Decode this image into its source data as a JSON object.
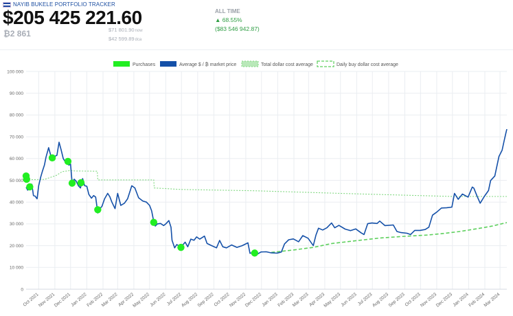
{
  "header": {
    "brand": "NAYIB BUKELE PORTFOLIO TRACKER",
    "total_value": "$205 425 221.60",
    "btc_amount": "₿2 861",
    "sub_line_1": "$71 801.90",
    "sub_line_1_unit": "now",
    "sub_line_2": "$42 599.89",
    "sub_line_2_unit": "dca",
    "alltime_label": "ALL TIME",
    "alltime_pct": "▲ 68.55%",
    "alltime_usd": "($83 546 942.87)"
  },
  "colors": {
    "price": "#1450a8",
    "purchase": "#22ee22",
    "total_dca": "#7fd77f",
    "daily_dca": "#5ccf5c",
    "grid": "#eaedf1"
  },
  "chart_data": {
    "type": "line",
    "title": "",
    "xlabel": "",
    "ylabel": "",
    "ylim": [
      0,
      100000
    ],
    "y_ticks": [
      "0",
      "10 000",
      "20 000",
      "30 000",
      "40 000",
      "50 000",
      "60 000",
      "70 000",
      "80 000",
      "90 000",
      "100 000"
    ],
    "x_ticks": [
      "Oct 2021",
      "Nov 2021",
      "Dec 2021",
      "Jan 2022",
      "Feb 2022",
      "Mar 2022",
      "Apr 2022",
      "May 2022",
      "Jun 2022",
      "Jul 2022",
      "Aug 2022",
      "Sep 2022",
      "Oct 2022",
      "Nov 2022",
      "Dec 2022",
      "Jan 2023",
      "Feb 2023",
      "Mar 2023",
      "Apr 2023",
      "May 2023",
      "Jun 2023",
      "Jul 2023",
      "Aug 2023",
      "Sep 2023",
      "Oct 2023",
      "Nov 2023",
      "Dec 2023",
      "Jan 2024",
      "Feb 2024",
      "Mar 2024"
    ],
    "x_start": "2021-09-07",
    "x_end": "2024-03-14",
    "legend": [
      "Purchases",
      "Average $ / ₿ market price",
      "Total dollar cost average",
      "Daily buy dollar cost average"
    ],
    "legend_position": "top",
    "grid": true,
    "series": [
      {
        "name": "Average $ / ₿ market price",
        "style": "solid",
        "points": [
          [
            "2021-09-07",
            46800
          ],
          [
            "2021-09-10",
            45500
          ],
          [
            "2021-09-14",
            47000
          ],
          [
            "2021-09-18",
            48200
          ],
          [
            "2021-09-21",
            43000
          ],
          [
            "2021-09-24",
            42800
          ],
          [
            "2021-09-28",
            41500
          ],
          [
            "2021-10-01",
            47500
          ],
          [
            "2021-10-05",
            51500
          ],
          [
            "2021-10-08",
            54000
          ],
          [
            "2021-10-12",
            57000
          ],
          [
            "2021-10-15",
            60500
          ],
          [
            "2021-10-20",
            65000
          ],
          [
            "2021-10-24",
            61500
          ],
          [
            "2021-10-28",
            60500
          ],
          [
            "2021-11-01",
            61000
          ],
          [
            "2021-11-05",
            61500
          ],
          [
            "2021-11-09",
            67500
          ],
          [
            "2021-11-13",
            64000
          ],
          [
            "2021-11-17",
            60000
          ],
          [
            "2021-11-21",
            58500
          ],
          [
            "2021-11-25",
            57500
          ],
          [
            "2021-11-28",
            57000
          ],
          [
            "2021-12-01",
            57500
          ],
          [
            "2021-12-04",
            49000
          ],
          [
            "2021-12-08",
            50500
          ],
          [
            "2021-12-12",
            49500
          ],
          [
            "2021-12-16",
            47500
          ],
          [
            "2021-12-20",
            46500
          ],
          [
            "2021-12-24",
            50800
          ],
          [
            "2021-12-28",
            47500
          ],
          [
            "2022-01-01",
            47300
          ],
          [
            "2022-01-05",
            43500
          ],
          [
            "2022-01-10",
            41800
          ],
          [
            "2022-01-14",
            43000
          ],
          [
            "2022-01-18",
            42300
          ],
          [
            "2022-01-22",
            35000
          ],
          [
            "2022-01-26",
            37000
          ],
          [
            "2022-01-30",
            38000
          ],
          [
            "2022-02-04",
            41500
          ],
          [
            "2022-02-10",
            44000
          ],
          [
            "2022-02-14",
            42500
          ],
          [
            "2022-02-18",
            40000
          ],
          [
            "2022-02-24",
            37000
          ],
          [
            "2022-03-01",
            44000
          ],
          [
            "2022-03-07",
            38500
          ],
          [
            "2022-03-14",
            39500
          ],
          [
            "2022-03-20",
            41500
          ],
          [
            "2022-03-28",
            47500
          ],
          [
            "2022-04-03",
            46500
          ],
          [
            "2022-04-10",
            42000
          ],
          [
            "2022-04-18",
            40500
          ],
          [
            "2022-04-25",
            40000
          ],
          [
            "2022-05-01",
            38500
          ],
          [
            "2022-05-05",
            36000
          ],
          [
            "2022-05-09",
            31000
          ],
          [
            "2022-05-12",
            29000
          ],
          [
            "2022-05-16",
            30000
          ],
          [
            "2022-05-22",
            30200
          ],
          [
            "2022-05-28",
            29200
          ],
          [
            "2022-06-01",
            30000
          ],
          [
            "2022-06-07",
            31500
          ],
          [
            "2022-06-11",
            28500
          ],
          [
            "2022-06-13",
            22500
          ],
          [
            "2022-06-18",
            19000
          ],
          [
            "2022-06-22",
            20500
          ],
          [
            "2022-06-30",
            19300
          ],
          [
            "2022-07-08",
            21600
          ],
          [
            "2022-07-13",
            19500
          ],
          [
            "2022-07-19",
            23000
          ],
          [
            "2022-07-25",
            22500
          ],
          [
            "2022-07-30",
            24000
          ],
          [
            "2022-08-05",
            23000
          ],
          [
            "2022-08-14",
            24400
          ],
          [
            "2022-08-19",
            21000
          ],
          [
            "2022-08-26",
            20200
          ],
          [
            "2022-09-06",
            19000
          ],
          [
            "2022-09-12",
            22400
          ],
          [
            "2022-09-18",
            19500
          ],
          [
            "2022-09-25",
            19000
          ],
          [
            "2022-10-05",
            20300
          ],
          [
            "2022-10-15",
            19200
          ],
          [
            "2022-10-25",
            20000
          ],
          [
            "2022-11-05",
            21300
          ],
          [
            "2022-11-09",
            16500
          ],
          [
            "2022-11-15",
            16800
          ],
          [
            "2022-11-21",
            15800
          ],
          [
            "2022-11-30",
            17100
          ],
          [
            "2022-12-10",
            17200
          ],
          [
            "2022-12-20",
            16700
          ],
          [
            "2022-12-31",
            16550
          ],
          [
            "2023-01-08",
            17100
          ],
          [
            "2023-01-14",
            20800
          ],
          [
            "2023-01-22",
            22700
          ],
          [
            "2023-01-31",
            23100
          ],
          [
            "2023-02-10",
            21800
          ],
          [
            "2023-02-18",
            24600
          ],
          [
            "2023-02-28",
            23400
          ],
          [
            "2023-03-10",
            20000
          ],
          [
            "2023-03-15",
            24800
          ],
          [
            "2023-03-20",
            28000
          ],
          [
            "2023-03-28",
            27200
          ],
          [
            "2023-04-05",
            28200
          ],
          [
            "2023-04-14",
            30400
          ],
          [
            "2023-04-20",
            28200
          ],
          [
            "2023-04-28",
            29300
          ],
          [
            "2023-05-10",
            27600
          ],
          [
            "2023-05-20",
            26900
          ],
          [
            "2023-05-30",
            27700
          ],
          [
            "2023-06-10",
            25800
          ],
          [
            "2023-06-15",
            25100
          ],
          [
            "2023-06-22",
            30100
          ],
          [
            "2023-06-30",
            30400
          ],
          [
            "2023-07-10",
            30200
          ],
          [
            "2023-07-15",
            31300
          ],
          [
            "2023-07-25",
            29200
          ],
          [
            "2023-08-10",
            29500
          ],
          [
            "2023-08-17",
            26500
          ],
          [
            "2023-08-25",
            26000
          ],
          [
            "2023-09-05",
            25700
          ],
          [
            "2023-09-12",
            25100
          ],
          [
            "2023-09-20",
            27000
          ],
          [
            "2023-09-30",
            27000
          ],
          [
            "2023-10-10",
            27400
          ],
          [
            "2023-10-17",
            28500
          ],
          [
            "2023-10-24",
            34000
          ],
          [
            "2023-11-01",
            35400
          ],
          [
            "2023-11-10",
            37300
          ],
          [
            "2023-11-20",
            37400
          ],
          [
            "2023-11-30",
            37700
          ],
          [
            "2023-12-05",
            44000
          ],
          [
            "2023-12-12",
            41300
          ],
          [
            "2023-12-20",
            43700
          ],
          [
            "2023-12-31",
            42300
          ],
          [
            "2024-01-08",
            46900
          ],
          [
            "2024-01-11",
            46400
          ],
          [
            "2024-01-17",
            42800
          ],
          [
            "2024-01-23",
            39500
          ],
          [
            "2024-01-31",
            42600
          ],
          [
            "2024-02-08",
            45300
          ],
          [
            "2024-02-12",
            49900
          ],
          [
            "2024-02-20",
            52000
          ],
          [
            "2024-02-28",
            61000
          ],
          [
            "2024-03-05",
            63800
          ],
          [
            "2024-03-09",
            68300
          ],
          [
            "2024-03-12",
            71500
          ],
          [
            "2024-03-14",
            73500
          ]
        ]
      },
      {
        "name": "Total dollar cost average",
        "style": "dotted",
        "points": [
          [
            "2021-09-07",
            50600
          ],
          [
            "2021-09-18",
            50300
          ],
          [
            "2021-10-12",
            50400
          ],
          [
            "2021-10-27",
            51600
          ],
          [
            "2021-11-04",
            52300
          ],
          [
            "2021-11-15",
            54000
          ],
          [
            "2021-12-01",
            54500
          ],
          [
            "2021-12-10",
            54300
          ],
          [
            "2022-01-21",
            54200
          ],
          [
            "2022-01-22",
            50200
          ],
          [
            "2022-05-09",
            50200
          ],
          [
            "2022-05-10",
            46500
          ],
          [
            "2022-06-30",
            45800
          ],
          [
            "2022-11-18",
            45200
          ],
          [
            "2023-06-01",
            43800
          ],
          [
            "2023-12-01",
            42600
          ],
          [
            "2024-03-14",
            42600
          ]
        ]
      },
      {
        "name": "Daily buy dollar cost average",
        "style": "dashed",
        "points": [
          [
            "2022-12-20",
            16900
          ],
          [
            "2023-01-31",
            18000
          ],
          [
            "2023-03-10",
            19200
          ],
          [
            "2023-04-15",
            21000
          ],
          [
            "2023-06-01",
            22300
          ],
          [
            "2023-07-15",
            23500
          ],
          [
            "2023-09-01",
            24300
          ],
          [
            "2023-10-15",
            24900
          ],
          [
            "2023-11-15",
            25600
          ],
          [
            "2023-12-15",
            26500
          ],
          [
            "2024-01-15",
            27700
          ],
          [
            "2024-02-15",
            29000
          ],
          [
            "2024-03-14",
            30600
          ]
        ]
      }
    ],
    "purchases": [
      {
        "date": "2021-09-07",
        "price": 52000
      },
      {
        "date": "2021-09-08",
        "price": 50500
      },
      {
        "date": "2021-09-14",
        "price": 47000
      },
      {
        "date": "2021-10-27",
        "price": 60300
      },
      {
        "date": "2021-11-26",
        "price": 58700
      },
      {
        "date": "2021-12-04",
        "price": 48700
      },
      {
        "date": "2021-12-21",
        "price": 48900
      },
      {
        "date": "2022-01-22",
        "price": 36500
      },
      {
        "date": "2022-05-09",
        "price": 30700
      },
      {
        "date": "2022-06-30",
        "price": 19200
      },
      {
        "date": "2022-11-18",
        "price": 16600
      }
    ]
  }
}
